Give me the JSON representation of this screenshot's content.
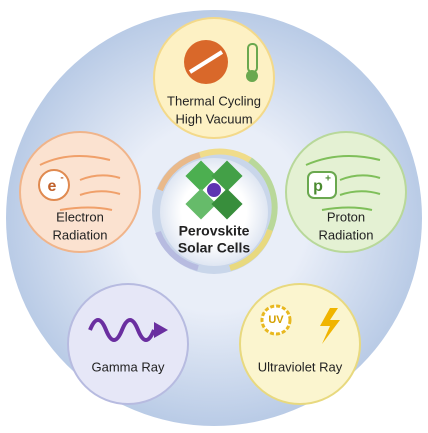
{
  "center": {
    "lines": [
      "Perovskite",
      "Solar Cells"
    ]
  },
  "nodes": [
    {
      "lines": [
        "Thermal Cycling",
        "High Vacuum"
      ]
    },
    {
      "icon": {
        "base": "e",
        "sup": "-"
      },
      "lines": [
        "Electron",
        "Radiation"
      ]
    },
    {
      "icon": {
        "base": "p",
        "sup": "+"
      },
      "lines": [
        "Proton",
        "Radiation"
      ]
    },
    {
      "lines": [
        "Gamma Ray"
      ]
    },
    {
      "icon": {
        "base": "UV"
      },
      "lines": [
        "Ultraviolet Ray"
      ]
    }
  ]
}
